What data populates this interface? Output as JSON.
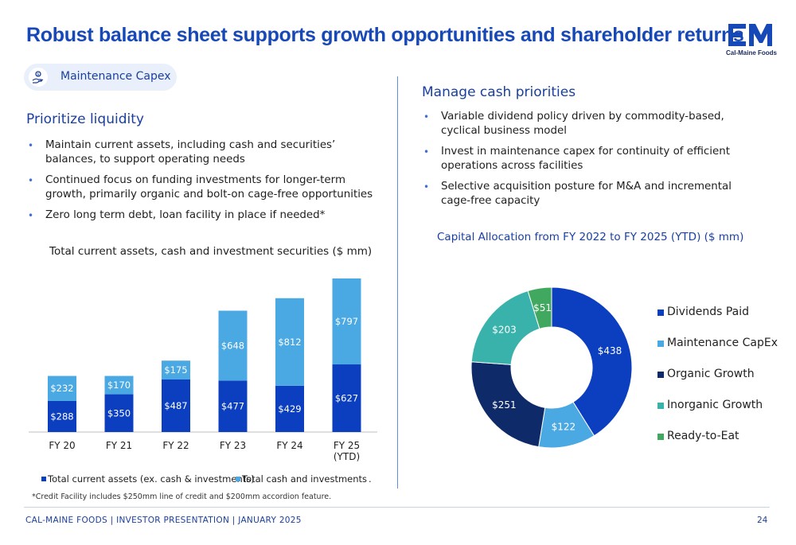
{
  "header": {
    "title": "Robust balance sheet supports growth opportunities and shareholder returns",
    "logo_text": "Cal-Maine Foods"
  },
  "pill": {
    "label": "Maintenance Capex",
    "icon": "hand-coins-icon"
  },
  "left": {
    "heading": "Prioritize liquidity",
    "bullets": [
      "Maintain current assets, including cash and securities’ balances, to support operating needs",
      "Continued focus on funding investments for longer-term growth, primarily organic and bolt-on cage-free opportunities",
      "Zero long term debt, loan facility in place if needed*"
    ]
  },
  "right": {
    "heading": "Manage cash priorities",
    "bullets": [
      "Variable dividend policy driven by commodity-based, cyclical business model",
      "Invest in maintenance capex for continuity of efficient operations across facilities",
      "Selective acquisition posture for M&A and incremental cage-free capacity"
    ]
  },
  "colors": {
    "accent": "#1748b8",
    "dark_blue": "#0c3fbf",
    "light_blue": "#4aa8e3",
    "navy": "#0f2a68",
    "teal": "#38b2ab",
    "green": "#41a85f"
  },
  "chart_data": [
    {
      "type": "bar",
      "stacked": true,
      "title": "Total current assets, cash and investment securities ($ mm)",
      "categories": [
        "FY 20",
        "FY 21",
        "FY 22",
        "FY 23",
        "FY 24",
        "FY 25 (YTD)"
      ],
      "category_lines": [
        [
          "FY 20"
        ],
        [
          "FY 21"
        ],
        [
          "FY 22"
        ],
        [
          "FY 23"
        ],
        [
          "FY 24"
        ],
        [
          "FY 25",
          "(YTD)"
        ]
      ],
      "series": [
        {
          "name": "Total current assets (ex. cash & investments)",
          "values": [
            288,
            350,
            487,
            477,
            429,
            627
          ],
          "labels": [
            "$288",
            "$350",
            "$487",
            "$477",
            "$429",
            "$627"
          ],
          "color": "#0c3fbf"
        },
        {
          "name": "Total cash and investments",
          "values": [
            232,
            170,
            175,
            648,
            812,
            797
          ],
          "labels": [
            "$232",
            "$170",
            "$175",
            "$648",
            "$812",
            "$797"
          ],
          "color": "#4aa8e3"
        }
      ],
      "legend_trailing": ".",
      "ylim": [
        0,
        1424
      ],
      "grid": false,
      "legend_position": "bottom"
    },
    {
      "type": "pie",
      "donut": true,
      "title": "Capital Allocation from FY 2022 to FY 2025 (YTD) ($ mm)",
      "slices": [
        {
          "name": "Dividends Paid",
          "value": 438,
          "label": "$438",
          "color": "#0c3fbf"
        },
        {
          "name": "Maintenance CapEx",
          "value": 122,
          "label": "$122",
          "color": "#4aa8e3"
        },
        {
          "name": "Organic Growth",
          "value": 251,
          "label": "$251",
          "color": "#0f2a68"
        },
        {
          "name": "Inorganic Growth",
          "value": 203,
          "label": "$203",
          "color": "#38b2ab"
        },
        {
          "name": "Ready-to-Eat",
          "value": 51,
          "label": "$51",
          "color": "#41a85f"
        }
      ],
      "legend_position": "right"
    }
  ],
  "footnote": "*Credit Facility includes $250mm line of credit and $200mm accordion feature.",
  "footer": {
    "text": "CAL-MAINE FOODS | INVESTOR PRESENTATION | JANUARY 2025",
    "page": "24"
  }
}
